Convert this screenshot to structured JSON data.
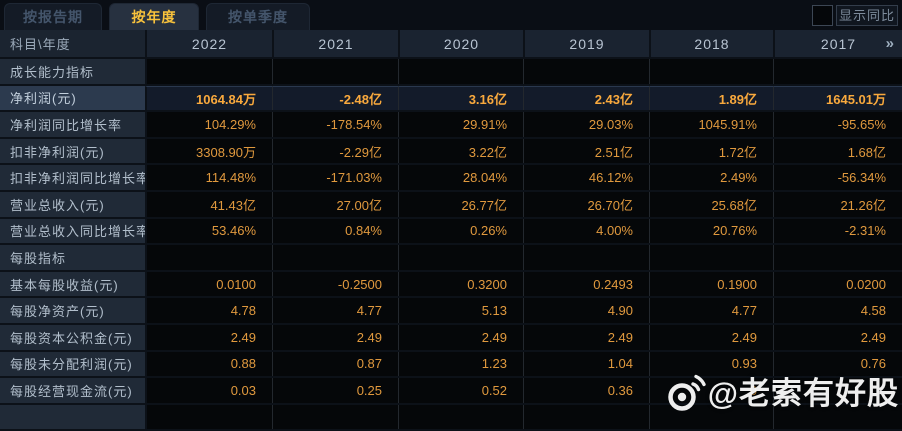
{
  "tabs": [
    {
      "label": "按报告期",
      "active": false
    },
    {
      "label": "按年度",
      "active": true
    },
    {
      "label": "按单季度",
      "active": false
    }
  ],
  "controls": {
    "show_yoy_label": "显示同比",
    "checkbox_checked": false
  },
  "table": {
    "corner_label": "科目\\年度",
    "years": [
      "2022",
      "2021",
      "2020",
      "2019",
      "2018",
      "2017"
    ],
    "more_icon": "»",
    "rows": [
      {
        "label": "成长能力指标",
        "type": "section",
        "values": [
          "",
          "",
          "",
          "",
          "",
          ""
        ]
      },
      {
        "label": "净利润(元)",
        "type": "highlight",
        "values": [
          "1064.84万",
          "-2.48亿",
          "3.16亿",
          "2.43亿",
          "1.89亿",
          "1645.01万"
        ]
      },
      {
        "label": "净利润同比增长率",
        "type": "normal",
        "values": [
          "104.29%",
          "-178.54%",
          "29.91%",
          "29.03%",
          "1045.91%",
          "-95.65%"
        ]
      },
      {
        "label": "扣非净利润(元)",
        "type": "normal",
        "values": [
          "3308.90万",
          "-2.29亿",
          "3.22亿",
          "2.51亿",
          "1.72亿",
          "1.68亿"
        ]
      },
      {
        "label": "扣非净利润同比增长率",
        "type": "normal",
        "values": [
          "114.48%",
          "-171.03%",
          "28.04%",
          "46.12%",
          "2.49%",
          "-56.34%"
        ]
      },
      {
        "label": "营业总收入(元)",
        "type": "normal",
        "values": [
          "41.43亿",
          "27.00亿",
          "26.77亿",
          "26.70亿",
          "25.68亿",
          "21.26亿"
        ]
      },
      {
        "label": "营业总收入同比增长率",
        "type": "normal",
        "values": [
          "53.46%",
          "0.84%",
          "0.26%",
          "4.00%",
          "20.76%",
          "-2.31%"
        ]
      },
      {
        "label": "每股指标",
        "type": "section",
        "values": [
          "",
          "",
          "",
          "",
          "",
          ""
        ]
      },
      {
        "label": "基本每股收益(元)",
        "type": "normal",
        "values": [
          "0.0100",
          "-0.2500",
          "0.3200",
          "0.2493",
          "0.1900",
          "0.0200"
        ]
      },
      {
        "label": "每股净资产(元)",
        "type": "normal",
        "values": [
          "4.78",
          "4.77",
          "5.13",
          "4.90",
          "4.77",
          "4.58"
        ]
      },
      {
        "label": "每股资本公积金(元)",
        "type": "normal",
        "values": [
          "2.49",
          "2.49",
          "2.49",
          "2.49",
          "2.49",
          "2.49"
        ]
      },
      {
        "label": "每股未分配利润(元)",
        "type": "normal",
        "values": [
          "0.88",
          "0.87",
          "1.23",
          "1.04",
          "0.93",
          "0.76"
        ]
      },
      {
        "label": "每股经营现金流(元)",
        "type": "normal",
        "values": [
          "0.03",
          "0.25",
          "0.52",
          "0.36",
          "0",
          ""
        ]
      },
      {
        "label": "",
        "type": "partial",
        "values": [
          "",
          "",
          "",
          "",
          "",
          ""
        ]
      }
    ]
  },
  "watermark": {
    "text": "@老索有好股",
    "icon": "weibo-icon"
  },
  "colors": {
    "accent_value": "#e0993e",
    "highlight_value": "#f9a93d",
    "tab_active_text": "#f8c23c",
    "label_cell_bg": "#202a37",
    "data_cell_bg": "#050709",
    "highlight_row_bg": "#131b2a",
    "header_bg": "#1a2330",
    "page_bg": "#0c1118"
  }
}
